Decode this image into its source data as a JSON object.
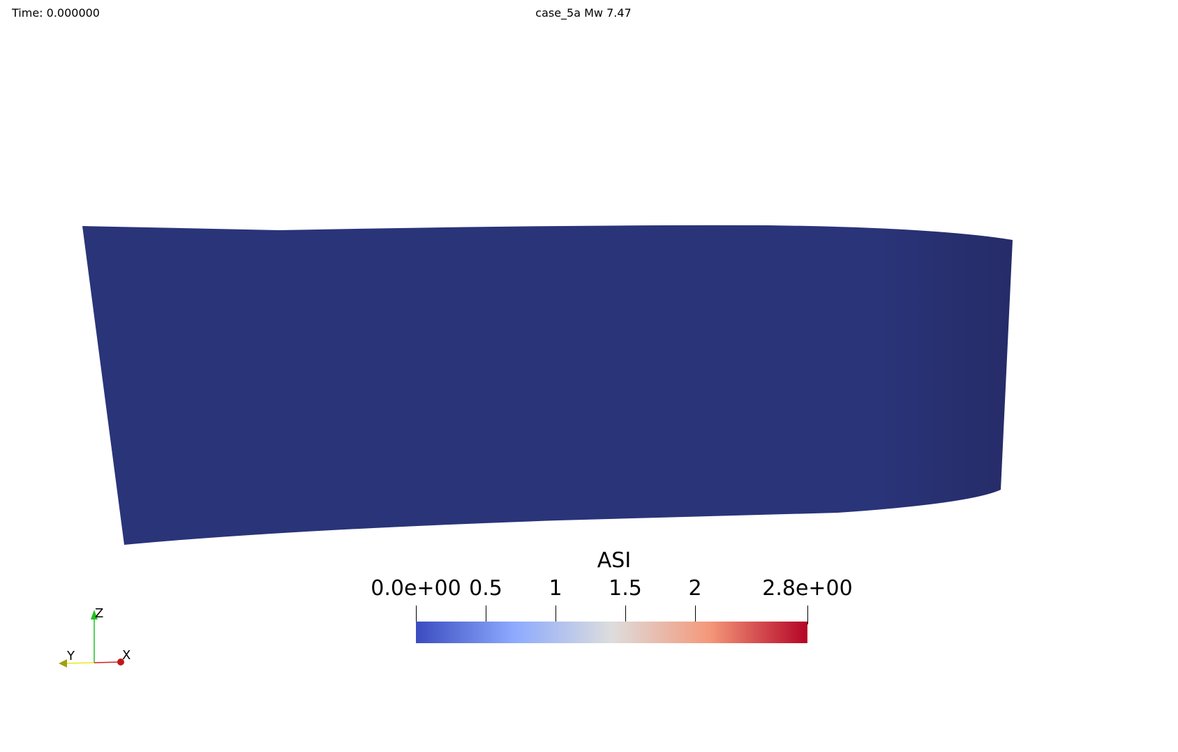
{
  "view": {
    "time_label": "Time: 0.000000",
    "title": "case_5a Mw 7.47"
  },
  "surface": {
    "color": "#2a3479",
    "value": 0.0
  },
  "colorbar": {
    "title": "ASI",
    "range": [
      0.0,
      2.8
    ],
    "colormap": "Cool to Warm",
    "colors": [
      "#3b4cc0",
      "#8caafe",
      "#dddddd",
      "#f4987a",
      "#b40426"
    ],
    "ticks": [
      {
        "value": 0.0,
        "label": "0.0e+00"
      },
      {
        "value": 0.5,
        "label": "0.5"
      },
      {
        "value": 1.0,
        "label": "1"
      },
      {
        "value": 1.5,
        "label": "1.5"
      },
      {
        "value": 2.0,
        "label": "2"
      },
      {
        "value": 2.8,
        "label": "2.8e+00"
      }
    ]
  },
  "orientation_axes": {
    "x_label": "X",
    "y_label": "Y",
    "z_label": "Z",
    "x_color": "#d42020",
    "y_color": "#e8e820",
    "z_color": "#20c020"
  }
}
